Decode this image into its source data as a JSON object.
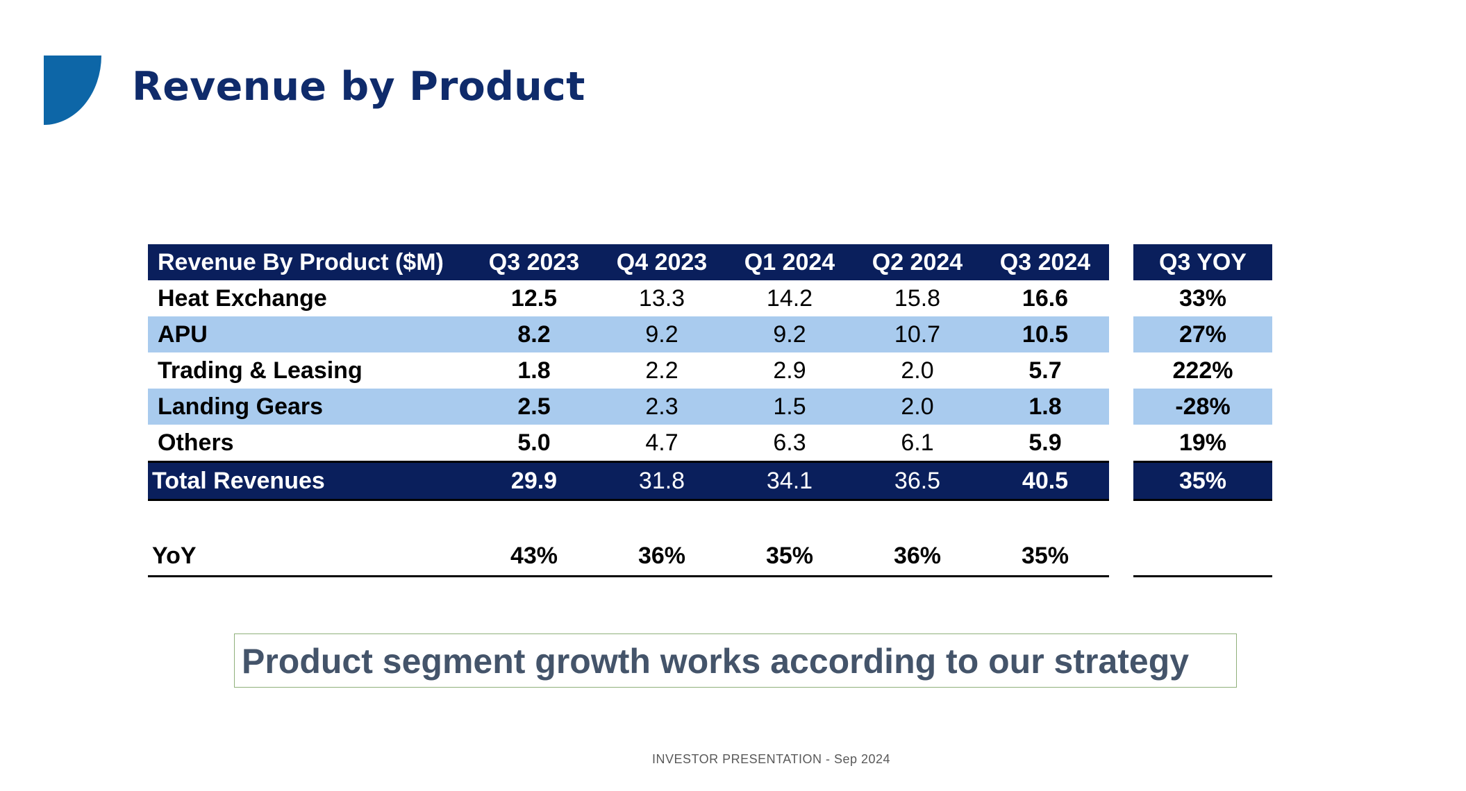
{
  "slide": {
    "title": "Revenue by Product",
    "callout": "Product segment growth works according to our strategy",
    "footer": "INVESTOR PRESENTATION - Sep 2024"
  },
  "table": {
    "header": [
      "Revenue By Product ($M)",
      "Q3 2023",
      "Q4 2023",
      "Q1 2024",
      "Q2 2024",
      "Q3 2024"
    ],
    "rows": [
      {
        "label": "Heat Exchange",
        "values": [
          "12.5",
          "13.3",
          "14.2",
          "15.8",
          "16.6"
        ]
      },
      {
        "label": "APU",
        "values": [
          "8.2",
          "9.2",
          "9.2",
          "10.7",
          "10.5"
        ]
      },
      {
        "label": "Trading & Leasing",
        "values": [
          "1.8",
          "2.2",
          "2.9",
          "2.0",
          "5.7"
        ]
      },
      {
        "label": "Landing Gears",
        "values": [
          "2.5",
          "2.3",
          "1.5",
          "2.0",
          "1.8"
        ]
      },
      {
        "label": "Others",
        "values": [
          "5.0",
          "4.7",
          "6.3",
          "6.1",
          "5.9"
        ]
      }
    ],
    "total": {
      "label": "Total Revenues",
      "values": [
        "29.9",
        "31.8",
        "34.1",
        "36.5",
        "40.5"
      ]
    },
    "yoy": {
      "label": "YoY",
      "values": [
        "43%",
        "36%",
        "35%",
        "36%",
        "35%"
      ]
    }
  },
  "q3_yoy": {
    "header": "Q3 YOY",
    "values": [
      "33%",
      "27%",
      "222%",
      "-28%",
      "19%"
    ],
    "total": "35%"
  },
  "colors": {
    "title": "#0f2b6b",
    "header_bg": "#0a1f5c",
    "row_highlight": "#a9cbee",
    "logo": "#0d66a7",
    "callout_text": "#44546a",
    "callout_border": "#8fb07a"
  }
}
